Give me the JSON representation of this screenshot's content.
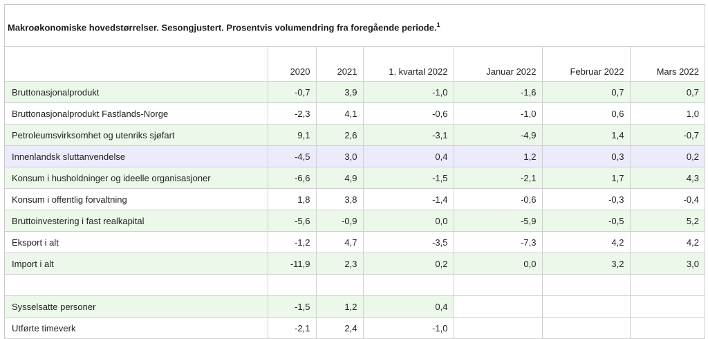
{
  "caption": {
    "title": "Makroøkonomiske hovedstørrelser. Sesongjustert. Prosentvis volumendring fra foregående periode.",
    "footnote": "1"
  },
  "columns": [
    "",
    "2020",
    "2021",
    "1. kvartal 2022",
    "Januar 2022",
    "Februar 2022",
    "Mars 2022"
  ],
  "rows": [
    {
      "label": "Bruttonasjonalprodukt",
      "values": [
        "-0,7",
        "3,9",
        "-1,0",
        "-1,6",
        "0,7",
        "0,7"
      ],
      "shade": "green"
    },
    {
      "label": "Bruttonasjonalprodukt Fastlands-Norge",
      "values": [
        "-2,3",
        "4,1",
        "-0,6",
        "-1,0",
        "0,6",
        "1,0"
      ],
      "shade": "white"
    },
    {
      "label": "Petroleumsvirksomhet og utenriks sjøfart",
      "values": [
        "9,1",
        "2,6",
        "-3,1",
        "-4,9",
        "1,4",
        "-0,7"
      ],
      "shade": "green"
    },
    {
      "label": "Innenlandsk sluttanvendelse",
      "values": [
        "-4,5",
        "3,0",
        "0,4",
        "1,2",
        "0,3",
        "0,2"
      ],
      "shade": "purple"
    },
    {
      "label": "Konsum i husholdninger og ideelle organisasjoner",
      "values": [
        "-6,6",
        "4,9",
        "-1,5",
        "-2,1",
        "1,7",
        "4,3"
      ],
      "shade": "green"
    },
    {
      "label": "Konsum i offentlig forvaltning",
      "values": [
        "1,8",
        "3,8",
        "-1,4",
        "-0,6",
        "-0,3",
        "-0,4"
      ],
      "shade": "white"
    },
    {
      "label": "Bruttoinvestering i fast realkapital",
      "values": [
        "-5,6",
        "-0,9",
        "0,0",
        "-5,9",
        "-0,5",
        "5,2"
      ],
      "shade": "green"
    },
    {
      "label": "Eksport i alt",
      "values": [
        "-1,2",
        "4,7",
        "-3,5",
        "-7,3",
        "4,2",
        "4,2"
      ],
      "shade": "white"
    },
    {
      "label": "Import i alt",
      "values": [
        "-11,9",
        "2,3",
        "0,2",
        "0,0",
        "3,2",
        "3,0"
      ],
      "shade": "green"
    },
    {
      "label": "",
      "values": [
        "",
        "",
        "",
        "",
        "",
        ""
      ],
      "shade": "white"
    },
    {
      "label": "Sysselsatte personer",
      "values": [
        "-1,5",
        "1,2",
        "0,4",
        "",
        "",
        ""
      ],
      "shade": "green"
    },
    {
      "label": "Utførte timeverk",
      "values": [
        "-2,1",
        "2,4",
        "-1,0",
        "",
        "",
        ""
      ],
      "shade": "white"
    }
  ]
}
